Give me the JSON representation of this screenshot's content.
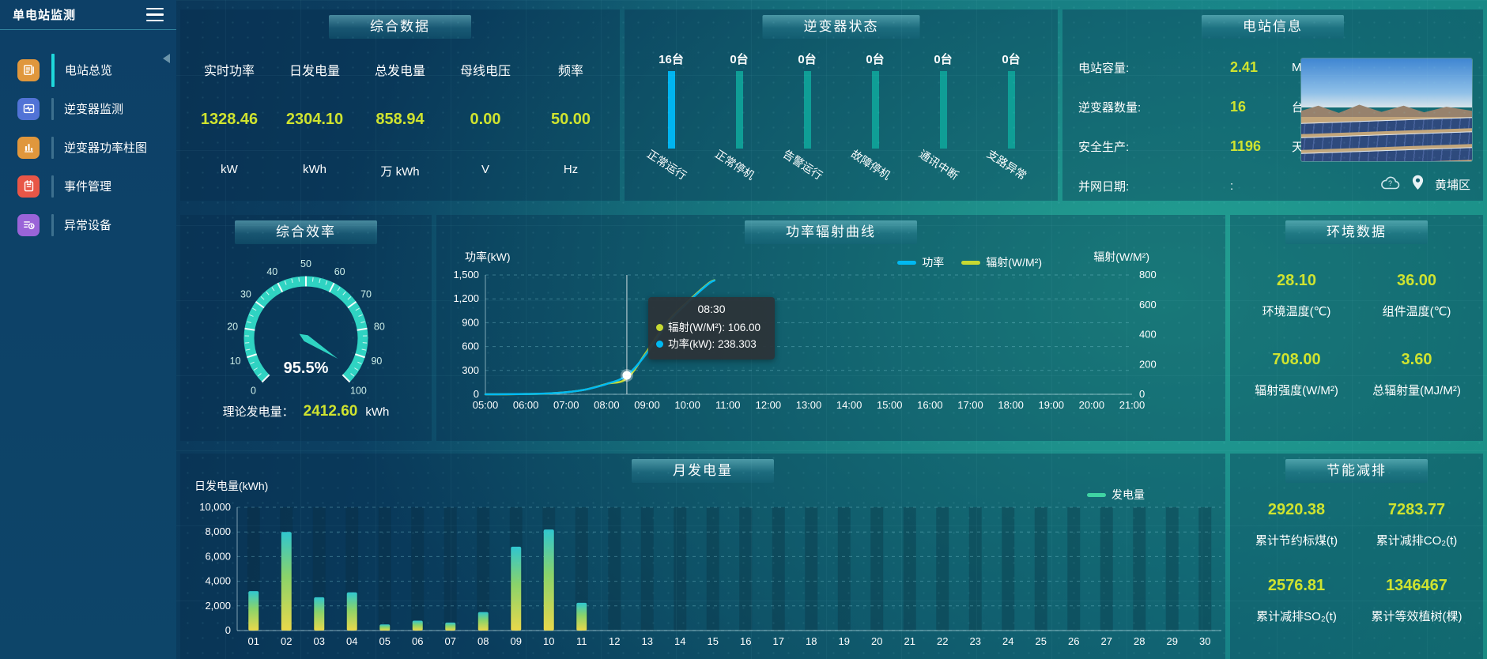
{
  "app": {
    "title": "单电站监测"
  },
  "sidebar": {
    "items": [
      {
        "label": "电站总览",
        "icon": "overview-news-icon",
        "icon_color": "#e0973c",
        "active": true
      },
      {
        "label": "逆变器监测",
        "icon": "inverter-monitor-icon",
        "icon_color": "#5173d6",
        "active": false
      },
      {
        "label": "逆变器功率柱图",
        "icon": "power-bars-icon",
        "icon_color": "#e0973c",
        "active": false
      },
      {
        "label": "事件管理",
        "icon": "event-notebook-icon",
        "icon_color": "#e85647",
        "active": false
      },
      {
        "label": "异常设备",
        "icon": "abnormal-device-icon",
        "icon_color": "#9a64d8",
        "active": false
      }
    ]
  },
  "summary": {
    "title": "综合数据",
    "metrics": [
      {
        "label": "实时功率",
        "value": "1328.46",
        "unit": "kW"
      },
      {
        "label": "日发电量",
        "value": "2304.10",
        "unit": "kWh"
      },
      {
        "label": "总发电量",
        "value": "858.94",
        "unit": "万 kWh"
      },
      {
        "label": "母线电压",
        "value": "0.00",
        "unit": "V"
      },
      {
        "label": "频率",
        "value": "50.00",
        "unit": "Hz"
      }
    ]
  },
  "inverter_status": {
    "title": "逆变器状态",
    "bars": [
      {
        "count": "16台",
        "label": "正常运行",
        "color": "#00b4f0"
      },
      {
        "count": "0台",
        "label": "正常停机",
        "color": "#0f9e96"
      },
      {
        "count": "0台",
        "label": "告警运行",
        "color": "#0f9e96"
      },
      {
        "count": "0台",
        "label": "故障停机",
        "color": "#0f9e96"
      },
      {
        "count": "0台",
        "label": "通讯中断",
        "color": "#0f9e96"
      },
      {
        "count": "0台",
        "label": "支路异常",
        "color": "#0f9e96"
      }
    ]
  },
  "station_info": {
    "title": "电站信息",
    "rows": [
      {
        "label": "电站容量:",
        "value": "2.41",
        "unit": "MW"
      },
      {
        "label": "逆变器数量:",
        "value": "16",
        "unit": "台"
      },
      {
        "label": "安全生产:",
        "value": "1196",
        "unit": "天"
      },
      {
        "label": "并网日期:",
        "value": ":",
        "unit": ""
      }
    ],
    "location": "黄埔区"
  },
  "efficiency": {
    "title": "综合效率",
    "percent": 95.5,
    "value_text": "95.5%",
    "tick_labels": [
      "0",
      "10",
      "20",
      "30",
      "40",
      "50",
      "60",
      "70",
      "80",
      "90",
      "100"
    ],
    "arc_color": "#2fd3c2",
    "theory_label": "理论发电量：",
    "theory_value": "2412.60",
    "theory_unit": "kWh"
  },
  "power_chart": {
    "title": "功率辐射曲线",
    "left_axis_title": "功率(kW)",
    "right_axis_title": "辐射(W/M²)",
    "left_ticks": [
      "1,500",
      "1,200",
      "900",
      "600",
      "300",
      "0"
    ],
    "right_ticks": [
      "800",
      "600",
      "400",
      "200",
      "0"
    ],
    "x_ticks": [
      "05:00",
      "06:00",
      "07:00",
      "08:00",
      "09:00",
      "10:00",
      "11:00",
      "12:00",
      "13:00",
      "14:00",
      "15:00",
      "16:00",
      "17:00",
      "18:00",
      "19:00",
      "20:00",
      "21:00"
    ],
    "legend": [
      {
        "name": "功率",
        "color": "#00b9f2"
      },
      {
        "name": "辐射(W/M²)",
        "color": "#c6d932"
      }
    ],
    "tooltip": {
      "title": "08:30",
      "rows": [
        {
          "color": "#c6d932",
          "text": "辐射(W/M²): 106.00"
        },
        {
          "color": "#00b9f2",
          "text": "功率(kW): 238.303"
        }
      ]
    },
    "chart_data": {
      "type": "line",
      "x": [
        "05:00",
        "05:30",
        "06:00",
        "06:30",
        "07:00",
        "07:30",
        "08:00",
        "08:30",
        "09:00",
        "09:30",
        "10:00",
        "10:30",
        "10:40"
      ],
      "series": [
        {
          "name": "功率",
          "axis": "left",
          "color": "#00b9f2",
          "values": [
            0,
            1,
            4,
            10,
            26,
            62,
            130,
            238.3,
            520,
            890,
            1150,
            1380,
            1430
          ]
        },
        {
          "name": "辐射(W/M²)",
          "axis": "right",
          "color": "#c6d932",
          "values": [
            0,
            0,
            2,
            5,
            14,
            33,
            70,
            106,
            290,
            485,
            620,
            740,
            765
          ]
        }
      ],
      "ylim_left": [
        0,
        1500
      ],
      "ylim_right": [
        0,
        800
      ],
      "x_range_hours": [
        5,
        21
      ],
      "highlight": {
        "x": "08:30",
        "power": 238.3
      }
    }
  },
  "env": {
    "title": "环境数据",
    "items": [
      {
        "value": "28.10",
        "label": "环境温度(℃)"
      },
      {
        "value": "36.00",
        "label": "组件温度(℃)"
      },
      {
        "value": "708.00",
        "label": "辐射强度(W/M²)"
      },
      {
        "value": "3.60",
        "label": "总辐射量(MJ/M²)"
      }
    ]
  },
  "monthly_chart": {
    "title": "月发电量",
    "axis_title": "日发电量(kWh)",
    "legend": "发电量",
    "legend_color": "#3fd3a3",
    "y_ticks": [
      "10,000",
      "8,000",
      "6,000",
      "4,000",
      "2,000",
      "0"
    ],
    "chart_data": {
      "type": "bar",
      "categories": [
        "01",
        "02",
        "03",
        "04",
        "05",
        "06",
        "07",
        "08",
        "09",
        "10",
        "11",
        "12",
        "13",
        "14",
        "15",
        "16",
        "17",
        "18",
        "19",
        "20",
        "21",
        "22",
        "23",
        "24",
        "25",
        "26",
        "27",
        "28",
        "29",
        "30"
      ],
      "values": [
        3200,
        8000,
        2700,
        3100,
        500,
        800,
        650,
        1500,
        6800,
        8200,
        2250,
        0,
        0,
        0,
        0,
        0,
        0,
        0,
        0,
        0,
        0,
        0,
        0,
        0,
        0,
        0,
        0,
        0,
        0,
        0
      ],
      "ylim": [
        0,
        10000
      ]
    }
  },
  "savings": {
    "title": "节能减排",
    "items": [
      {
        "value": "2920.38",
        "label": "累计节约标煤(t)"
      },
      {
        "value": "7283.77",
        "label": "累计减排CO₂(t)"
      },
      {
        "value": "2576.81",
        "label": "累计减排SO₂(t)"
      },
      {
        "value": "1346467",
        "label": "累计等效植树(棵)"
      }
    ]
  },
  "colors": {
    "accent_value": "#cfe32f",
    "status_highlight": "#00b4f0",
    "status_normal": "#0f9e96",
    "gauge": "#2fd3c2",
    "bar_gradient": [
      "#e9d84b",
      "#8ad36a",
      "#30c6cf"
    ]
  }
}
